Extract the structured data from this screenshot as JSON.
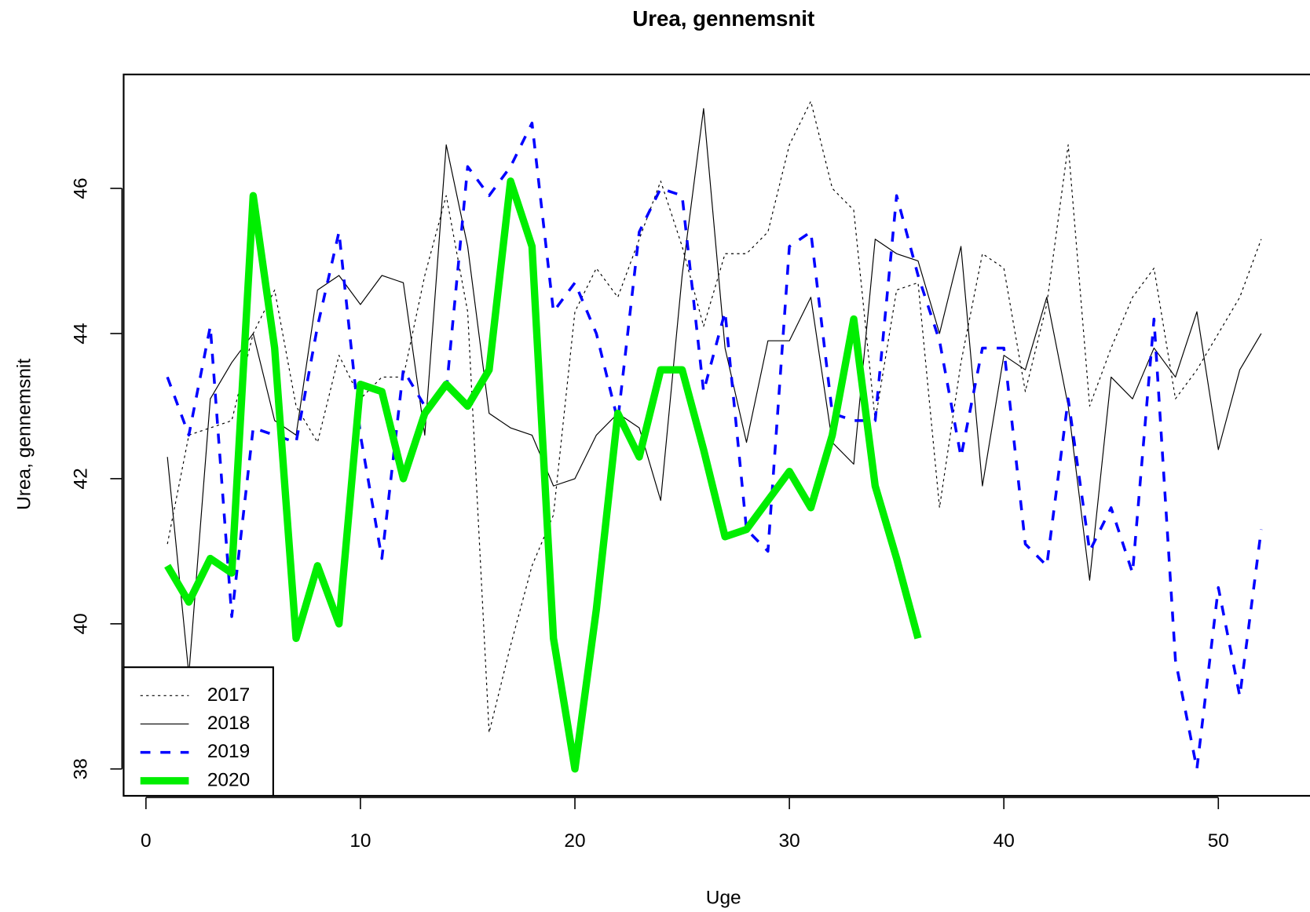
{
  "chart_data": {
    "type": "line",
    "title": "Urea, gennemsnit",
    "x_label": "Uge",
    "y_label": "Urea, gennemsnit",
    "x": [
      1,
      2,
      3,
      4,
      5,
      6,
      7,
      8,
      9,
      10,
      11,
      12,
      13,
      14,
      15,
      16,
      17,
      18,
      19,
      20,
      21,
      22,
      23,
      24,
      25,
      26,
      27,
      28,
      29,
      30,
      31,
      32,
      33,
      34,
      35,
      36,
      37,
      38,
      39,
      40,
      41,
      42,
      43,
      44,
      45,
      46,
      47,
      48,
      49,
      50,
      51,
      52
    ],
    "series": [
      {
        "name": "2017",
        "color": "#000000",
        "linestyle": "dotted",
        "linewidth": 1,
        "values": [
          41.1,
          42.6,
          42.7,
          42.8,
          44.0,
          44.6,
          43.0,
          42.5,
          43.7,
          43.1,
          43.4,
          43.4,
          44.8,
          45.9,
          44.3,
          38.5,
          39.7,
          40.8,
          41.5,
          44.3,
          44.9,
          44.5,
          45.3,
          46.1,
          45.2,
          44.1,
          45.1,
          45.1,
          45.4,
          46.6,
          47.2,
          46.0,
          45.7,
          42.8,
          44.6,
          44.7,
          41.6,
          43.6,
          45.1,
          44.9,
          43.2,
          44.4,
          46.6,
          43.0,
          43.8,
          44.5,
          44.9,
          43.1,
          43.5,
          44.0,
          44.5,
          45.3
        ]
      },
      {
        "name": "2018",
        "color": "#000000",
        "linestyle": "solid",
        "linewidth": 1,
        "values": [
          42.3,
          39.3,
          43.1,
          43.6,
          44.0,
          42.8,
          42.6,
          44.6,
          44.8,
          44.4,
          44.8,
          44.7,
          42.6,
          46.6,
          45.2,
          42.9,
          42.7,
          42.6,
          41.9,
          42.0,
          42.6,
          42.9,
          42.7,
          41.7,
          44.8,
          47.1,
          43.8,
          42.5,
          43.9,
          43.9,
          44.5,
          42.5,
          42.2,
          45.3,
          45.1,
          45.0,
          44.0,
          45.2,
          41.9,
          43.7,
          43.5,
          44.5,
          43.0,
          40.6,
          43.4,
          43.1,
          43.8,
          43.4,
          44.3,
          42.4,
          43.5,
          44.0
        ]
      },
      {
        "name": "2019",
        "color": "#0000ff",
        "linestyle": "dashed",
        "linewidth": 3,
        "values": [
          43.4,
          42.6,
          44.1,
          40.1,
          42.7,
          42.6,
          42.5,
          44.1,
          45.4,
          42.6,
          40.9,
          43.5,
          43.0,
          43.2,
          46.3,
          45.9,
          46.3,
          46.9,
          44.3,
          44.7,
          44.0,
          42.8,
          45.4,
          46.0,
          45.9,
          43.2,
          44.3,
          41.3,
          41.0,
          45.2,
          45.4,
          42.9,
          42.8,
          42.8,
          45.9,
          44.8,
          43.9,
          42.3,
          43.8,
          43.8,
          41.1,
          40.8,
          43.1,
          41.0,
          41.6,
          40.7,
          44.2,
          39.5,
          38.0,
          40.5,
          39.0,
          41.3
        ]
      },
      {
        "name": "2020",
        "color": "#00ee00",
        "linestyle": "solid",
        "linewidth": 8,
        "values": [
          40.8,
          40.3,
          40.9,
          40.7,
          45.9,
          43.8,
          39.8,
          40.8,
          40.0,
          43.3,
          43.2,
          42.0,
          42.9,
          43.3,
          43.0,
          43.5,
          46.1,
          45.2,
          39.8,
          38.0,
          40.2,
          42.9,
          42.3,
          43.5,
          43.5,
          42.4,
          41.2,
          41.3,
          41.7,
          42.1,
          41.6,
          42.6,
          44.2,
          41.9,
          40.9,
          39.8,
          null,
          null,
          null,
          null,
          null,
          null,
          null,
          null,
          null,
          null,
          null,
          null,
          null,
          null,
          null,
          null
        ]
      }
    ],
    "xlim": [
      -1.04,
      54.04
    ],
    "ylim": [
      37.63,
      47.57
    ],
    "xticks": [
      0,
      10,
      20,
      30,
      40,
      50
    ],
    "yticks": [
      38,
      40,
      42,
      44,
      46
    ],
    "grid": false,
    "legend_position": "bottom-left"
  }
}
